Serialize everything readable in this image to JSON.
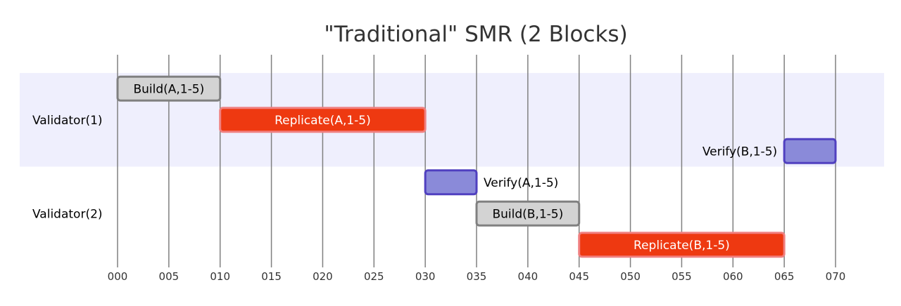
{
  "chart_data": {
    "type": "gantt",
    "title": "\"Traditional\" SMR (2 Blocks)",
    "x_ticks": [
      "000",
      "005",
      "010",
      "015",
      "020",
      "025",
      "030",
      "035",
      "040",
      "045",
      "050",
      "055",
      "060",
      "065",
      "070"
    ],
    "x_range": [
      0,
      70
    ],
    "sections": [
      {
        "name": "Validator(1)",
        "tasks": [
          {
            "label": "Build(A,1-5)",
            "start": 0,
            "end": 10,
            "kind": "build"
          },
          {
            "label": "Replicate(A,1-5)",
            "start": 10,
            "end": 30,
            "kind": "replicate"
          },
          {
            "label": "Verify(B,1-5)",
            "start": 65,
            "end": 70,
            "kind": "verify"
          }
        ]
      },
      {
        "name": "Validator(2)",
        "tasks": [
          {
            "label": "Verify(A,1-5)",
            "start": 30,
            "end": 35,
            "kind": "verify"
          },
          {
            "label": "Build(B,1-5)",
            "start": 35,
            "end": 45,
            "kind": "build"
          },
          {
            "label": "Replicate(B,1-5)",
            "start": 45,
            "end": 65,
            "kind": "replicate"
          }
        ]
      }
    ],
    "colors": {
      "build_fill": "#d3d3d3",
      "build_stroke": "#808080",
      "build_text": "#000000",
      "replicate_fill": "#ee3911",
      "replicate_stroke": "#f08080",
      "replicate_text": "#ffffff",
      "verify_fill": "#8a8ad9",
      "verify_stroke": "#5040c0",
      "verify_text": "#000000",
      "section1_band": "#efeffd",
      "grid": "#808080"
    }
  }
}
